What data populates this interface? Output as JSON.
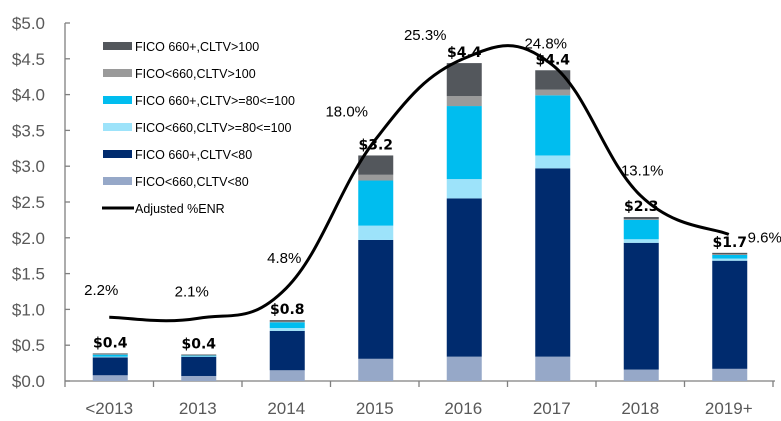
{
  "chart_data": {
    "type": "bar",
    "stacked": true,
    "title": "",
    "xlabel": "",
    "ylabel": "",
    "ylim": [
      0,
      5.0
    ],
    "yticks": [
      "$0.0",
      "$0.5",
      "$1.0",
      "$1.5",
      "$2.0",
      "$2.5",
      "$3.0",
      "$3.5",
      "$4.0",
      "$4.5",
      "$5.0"
    ],
    "ytick_values": [
      0,
      0.5,
      1.0,
      1.5,
      2.0,
      2.5,
      3.0,
      3.5,
      4.0,
      4.5,
      5.0
    ],
    "categories": [
      "<2013",
      "2013",
      "2014",
      "2015",
      "2016",
      "2017",
      "2018",
      "2019+"
    ],
    "grid": false,
    "legend_position": "top-left",
    "series": [
      {
        "name": "FICO<660,CLTV<80",
        "color": "#96A8C8",
        "values": [
          0.08,
          0.07,
          0.15,
          0.31,
          0.34,
          0.34,
          0.16,
          0.17
        ]
      },
      {
        "name": "FICO 660+,CLTV<80",
        "color": "#002B6E",
        "values": [
          0.25,
          0.27,
          0.55,
          1.66,
          2.21,
          2.63,
          1.77,
          1.51
        ]
      },
      {
        "name": "FICO<660,CLTV>=80<=100",
        "color": "#9DE3FA",
        "values": [
          0.01,
          0.005,
          0.04,
          0.2,
          0.27,
          0.18,
          0.05,
          0.03
        ]
      },
      {
        "name": "FICO 660+,CLTV>=80<=100",
        "color": "#00BDEF",
        "values": [
          0.03,
          0.015,
          0.08,
          0.63,
          1.02,
          0.84,
          0.27,
          0.05
        ]
      },
      {
        "name": "FICO<660,CLTV>100",
        "color": "#9A9A9A",
        "values": [
          0.005,
          0.002,
          0.01,
          0.08,
          0.14,
          0.08,
          0.01,
          0.01
        ]
      },
      {
        "name": "FICO 660+,CLTV>100",
        "color": "#53575C",
        "values": [
          0.01,
          0.008,
          0.02,
          0.27,
          0.46,
          0.27,
          0.03,
          0.02
        ]
      }
    ],
    "totals": [
      "$0.4",
      "$0.4",
      "$0.8",
      "$3.2",
      "$4.4",
      "$4.4",
      "$2.3",
      "$1.7"
    ],
    "line": {
      "name": "Adjusted %ENR",
      "color": "#000000",
      "axis": "secondary",
      "smoothed": true,
      "values": [
        2.2,
        2.1,
        4.8,
        18.0,
        25.3,
        24.8,
        13.1,
        9.6
      ],
      "labels": [
        "2.2%",
        "2.1%",
        "4.8%",
        "18.0%",
        "25.3%",
        "24.8%",
        "13.1%",
        "9.6%"
      ],
      "secondary_ylim": [
        -3.5,
        28.5
      ]
    },
    "legend": [
      {
        "label": "FICO 660+,CLTV>100",
        "color": "#53575C",
        "kind": "bar"
      },
      {
        "label": "FICO<660,CLTV>100",
        "color": "#9A9A9A",
        "kind": "bar"
      },
      {
        "label": "FICO 660+,CLTV>=80<=100",
        "color": "#00BDEF",
        "kind": "bar"
      },
      {
        "label": "FICO<660,CLTV>=80<=100",
        "color": "#9DE3FA",
        "kind": "bar"
      },
      {
        "label": "FICO 660+,CLTV<80",
        "color": "#002B6E",
        "kind": "bar"
      },
      {
        "label": "FICO<660,CLTV<80",
        "color": "#96A8C8",
        "kind": "bar"
      },
      {
        "label": "Adjusted %ENR",
        "color": "#000000",
        "kind": "line"
      }
    ]
  }
}
